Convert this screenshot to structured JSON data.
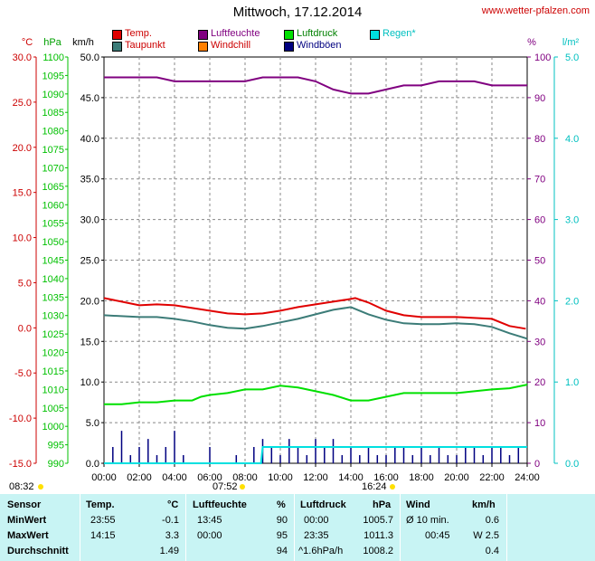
{
  "title": "Mittwoch, 17.12.2014",
  "site": "www.wetter-pfalzen.com",
  "legend": [
    {
      "label": "Temp.",
      "color": "#e00000",
      "text_color": "#cc0000"
    },
    {
      "label": "Taupunkt",
      "color": "#3c7c78",
      "text_color": "#cc0000"
    },
    {
      "label": "Luftfeuchte",
      "color": "#800080",
      "text_color": "#800080"
    },
    {
      "label": "Windchill",
      "color": "#ff8000",
      "text_color": "#cc0000"
    },
    {
      "label": "Luftdruck",
      "color": "#00e000",
      "text_color": "#008000"
    },
    {
      "label": "Windböen",
      "color": "#000080",
      "text_color": "#000080"
    },
    {
      "label": "Regen*",
      "color": "#00e0e0",
      "text_color": "#00c0c0"
    }
  ],
  "axis_units": {
    "temp": "°C",
    "pressure": "hPa",
    "wind": "km/h",
    "humidity": "%",
    "rain": "l/m²"
  },
  "sun": {
    "sunrise": "08:32",
    "sunset": "16:24",
    "noon_marker": "07:52"
  },
  "chart_data": {
    "type": "line",
    "x_ticks": [
      "00:00",
      "02:00",
      "04:00",
      "06:00",
      "08:00",
      "10:00",
      "12:00",
      "14:00",
      "16:00",
      "18:00",
      "20:00",
      "22:00",
      "24:00"
    ],
    "axes": {
      "temp": {
        "min": -15.0,
        "max": 30.0,
        "ticks": [
          "30.0",
          "25.0",
          "20.0",
          "15.0",
          "10.0",
          "5.0",
          "0.0",
          "-5.0",
          "-10.0",
          "-15.0"
        ]
      },
      "pressure": {
        "min": 990,
        "max": 1100,
        "ticks": [
          "1100",
          "1095",
          "1090",
          "1085",
          "1080",
          "1075",
          "1070",
          "1065",
          "1060",
          "1055",
          "1050",
          "1045",
          "1040",
          "1035",
          "1030",
          "1025",
          "1020",
          "1015",
          "1010",
          "1005",
          "1000",
          "995",
          "990"
        ]
      },
      "wind": {
        "min": 0,
        "max": 50,
        "ticks": [
          "50.0",
          "45.0",
          "40.0",
          "35.0",
          "30.0",
          "25.0",
          "20.0",
          "15.0",
          "10.0",
          "5.0",
          "0.0"
        ]
      },
      "humidity": {
        "min": 0,
        "max": 100,
        "ticks": [
          "100",
          "90",
          "80",
          "70",
          "60",
          "50",
          "40",
          "30",
          "20",
          "10",
          "0"
        ]
      },
      "rain": {
        "min": 0,
        "max": 5,
        "ticks": [
          "5.0",
          "4.0",
          "3.0",
          "2.0",
          "1.0",
          "0.0"
        ]
      }
    },
    "series": [
      {
        "name": "Temp.",
        "axis": "temp",
        "color": "#e00000",
        "x": [
          0,
          1,
          2,
          3,
          4,
          5,
          6,
          7,
          8,
          9,
          10,
          11,
          12,
          13,
          14,
          14.25,
          15,
          16,
          17,
          18,
          19,
          20,
          21,
          22,
          23,
          23.92
        ],
        "y": [
          3.3,
          2.9,
          2.5,
          2.6,
          2.5,
          2.2,
          1.9,
          1.6,
          1.5,
          1.6,
          1.9,
          2.3,
          2.6,
          2.9,
          3.2,
          3.3,
          2.8,
          1.9,
          1.4,
          1.2,
          1.2,
          1.2,
          1.1,
          1.0,
          0.2,
          -0.1
        ]
      },
      {
        "name": "Taupunkt",
        "axis": "temp",
        "color": "#3c7c78",
        "x": [
          0,
          1,
          2,
          3,
          4,
          5,
          6,
          7,
          8,
          9,
          10,
          11,
          12,
          13,
          14,
          15,
          16,
          17,
          18,
          19,
          20,
          21,
          22,
          23,
          24
        ],
        "y": [
          1.4,
          1.3,
          1.2,
          1.2,
          1.0,
          0.7,
          0.3,
          0.0,
          -0.1,
          0.2,
          0.6,
          1.0,
          1.5,
          2.0,
          2.3,
          1.5,
          0.9,
          0.5,
          0.4,
          0.4,
          0.5,
          0.4,
          0.1,
          -0.6,
          -1.2
        ]
      },
      {
        "name": "Luftfeuchte",
        "axis": "humidity",
        "color": "#800080",
        "x": [
          0,
          1,
          2,
          3,
          4,
          5,
          6,
          7,
          8,
          9,
          10,
          11,
          12,
          13,
          14,
          15,
          16,
          17,
          18,
          19,
          20,
          21,
          22,
          23,
          24
        ],
        "y": [
          95,
          95,
          95,
          95,
          94,
          94,
          94,
          94,
          94,
          95,
          95,
          95,
          94,
          92,
          91,
          91,
          92,
          93,
          93,
          94,
          94,
          94,
          93,
          93,
          93
        ]
      },
      {
        "name": "Luftdruck",
        "axis": "pressure",
        "color": "#00e000",
        "x": [
          0,
          1,
          2,
          3,
          4,
          5,
          5.5,
          6,
          7,
          8,
          9,
          10,
          11,
          12,
          13,
          14,
          15,
          16,
          17,
          18,
          19,
          20,
          21,
          22,
          23,
          24
        ],
        "y": [
          1006,
          1006,
          1006.5,
          1006.5,
          1007,
          1007,
          1008,
          1008.5,
          1009,
          1010,
          1010,
          1011,
          1010.5,
          1009.5,
          1008.5,
          1007,
          1007,
          1008,
          1009,
          1009,
          1009,
          1009,
          1009.5,
          1010,
          1010.3,
          1011.3
        ]
      },
      {
        "name": "Windböen",
        "axis": "wind",
        "color": "#000080",
        "x": [
          0,
          0.5,
          1,
          1.5,
          2,
          2.5,
          3,
          3.5,
          4,
          4.5,
          5,
          5.5,
          6,
          6.5,
          7,
          7.5,
          8,
          8.5,
          9,
          9.5,
          10,
          10.5,
          11,
          11.5,
          12,
          12.5,
          13,
          13.5,
          14,
          14.5,
          15,
          15.5,
          16,
          16.5,
          17,
          17.5,
          18,
          18.5,
          19,
          19.5,
          20,
          20.5,
          21,
          21.5,
          22,
          22.5,
          23,
          23.5,
          24
        ],
        "y": [
          0,
          2,
          4,
          1,
          2,
          3,
          1,
          2,
          4,
          1,
          0,
          0,
          2,
          0,
          0,
          1,
          0,
          2,
          3,
          2,
          1,
          3,
          2,
          1,
          3,
          2,
          3,
          1,
          2,
          1,
          2,
          1,
          1,
          2,
          2,
          1,
          2,
          1,
          2,
          1,
          1,
          2,
          2,
          1,
          2,
          2,
          1,
          2,
          0
        ]
      },
      {
        "name": "Regen*",
        "axis": "rain",
        "color": "#00e0e0",
        "x": [
          0,
          8.9,
          9,
          10,
          12,
          14,
          16,
          18,
          20,
          22,
          24
        ],
        "y": [
          0,
          0,
          0.2,
          0.2,
          0.2,
          0.2,
          0.2,
          0.2,
          0.2,
          0.2,
          0.2
        ]
      }
    ]
  },
  "stats": {
    "headers": {
      "sensor": "Sensor",
      "temp": "Temp.",
      "temp_unit": "°C",
      "hum": "Luftfeuchte",
      "hum_unit": "%",
      "press": "Luftdruck",
      "press_unit": "hPa",
      "wind": "Wind",
      "wind_unit": "km/h"
    },
    "rows": [
      {
        "label": "MinWert",
        "t_time": "23:55",
        "t_val": "-0.1",
        "h_time": "13:45",
        "h_val": "90",
        "p_time": "00:00",
        "p_val": "1005.7",
        "w_label": "Ø 10 min.",
        "w_val": "0.6"
      },
      {
        "label": "MaxWert",
        "t_time": "14:15",
        "t_val": "3.3",
        "h_time": "00:00",
        "h_val": "95",
        "p_time": "23:35",
        "p_val": "1011.3",
        "w_label": "00:45",
        "w_val": "W 2.5"
      },
      {
        "label": "Durchschnitt",
        "t_time": "",
        "t_val": "1.49",
        "h_time": "",
        "h_val": "94",
        "p_time": "^1.6hPa/h",
        "p_val": "1008.2",
        "w_label": "",
        "w_val": "0.4"
      }
    ]
  }
}
